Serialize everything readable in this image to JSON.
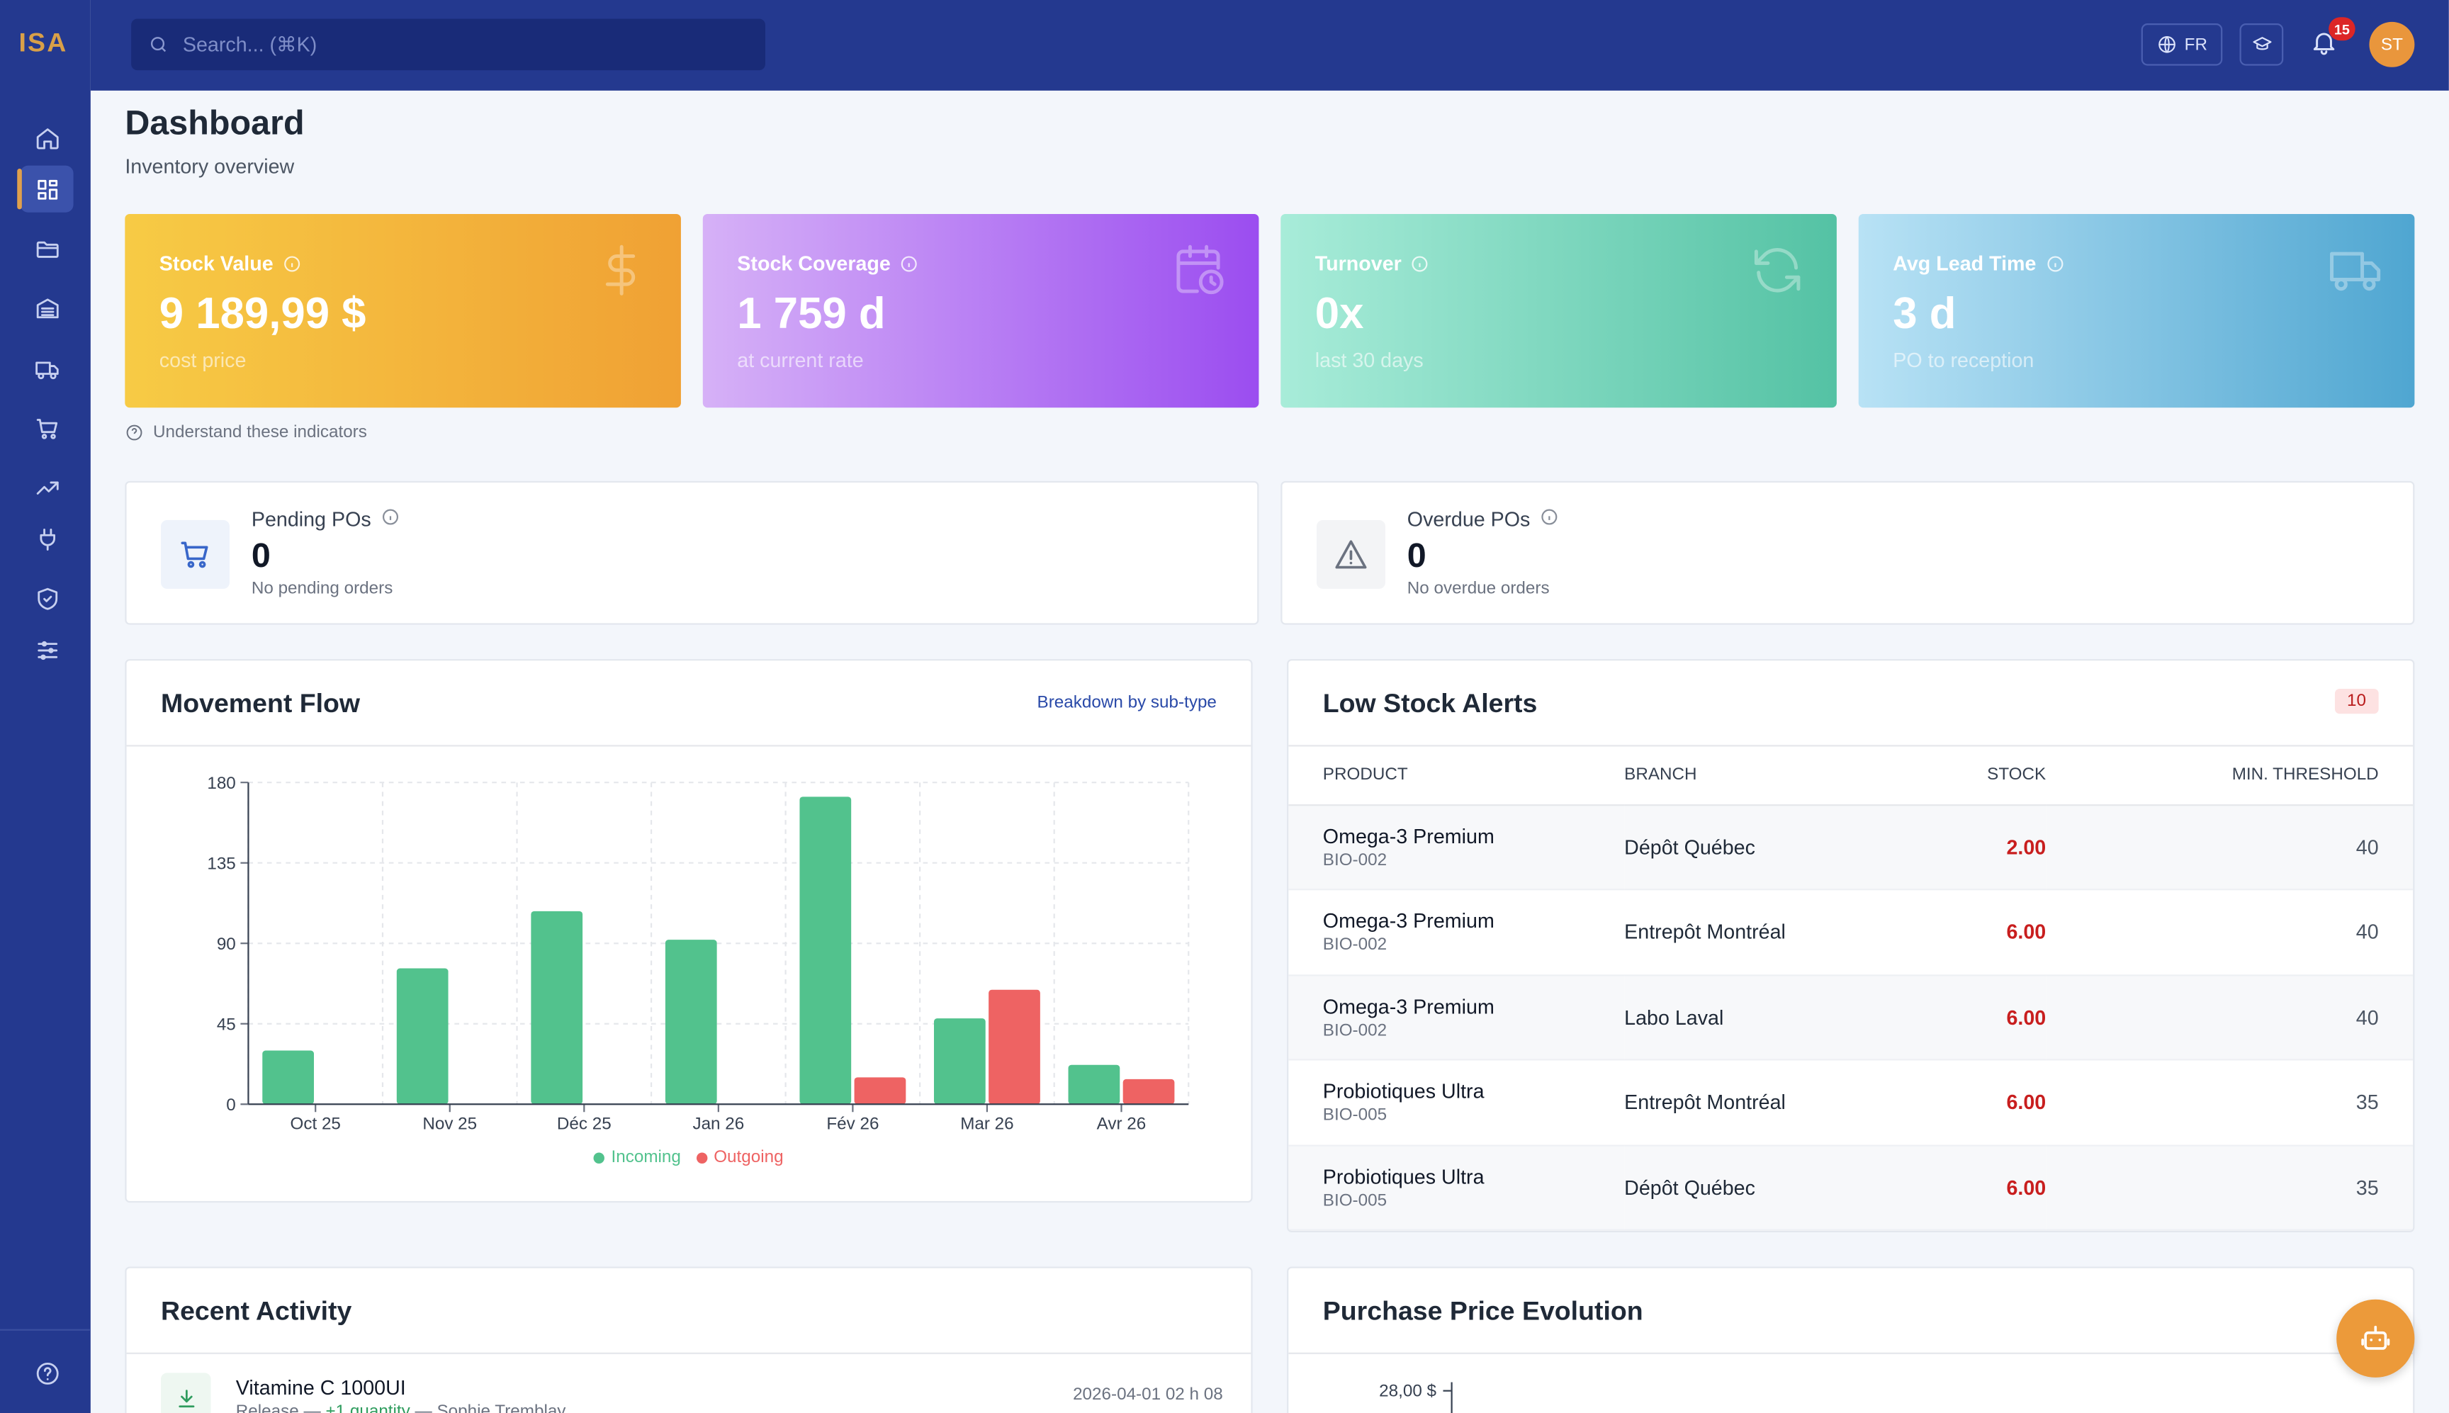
{
  "app": {
    "logo": "ISA"
  },
  "search": {
    "placeholder": "Search... (⌘K)"
  },
  "topbar": {
    "language": "FR",
    "notifications": "15",
    "avatar": "ST"
  },
  "page": {
    "title": "Dashboard",
    "subtitle": "Inventory overview"
  },
  "kpis": [
    {
      "label": "Stock Value",
      "value": "9 189,99 $",
      "sub": "cost price",
      "icon": "dollar-icon"
    },
    {
      "label": "Stock Coverage",
      "value": "1 759 d",
      "sub": "at current rate",
      "icon": "calendar-clock-icon"
    },
    {
      "label": "Turnover",
      "value": "0x",
      "sub": "last 30 days",
      "icon": "refresh-icon"
    },
    {
      "label": "Avg Lead Time",
      "value": "3 d",
      "sub": "PO to reception",
      "icon": "truck-icon"
    }
  ],
  "understand_link": "Understand these indicators",
  "pending": {
    "label": "Pending POs",
    "value": "0",
    "sub": "No pending orders"
  },
  "overdue": {
    "label": "Overdue POs",
    "value": "0",
    "sub": "No overdue orders"
  },
  "movement": {
    "title": "Movement Flow",
    "link": "Breakdown by sub-type"
  },
  "chart_data": {
    "type": "bar",
    "categories": [
      "Oct 25",
      "Nov 25",
      "Déc 25",
      "Jan 26",
      "Fév 26",
      "Mar 26",
      "Avr 26"
    ],
    "series": [
      {
        "name": "Incoming",
        "values": [
          30,
          76,
          108,
          92,
          172,
          48,
          22
        ],
        "color": "#52c28d"
      },
      {
        "name": "Outgoing",
        "values": [
          0,
          0,
          0,
          0,
          15,
          64,
          14
        ],
        "color": "#ee6363"
      }
    ],
    "yticks": [
      "0",
      "45",
      "90",
      "135",
      "180"
    ],
    "ylim": [
      0,
      180
    ],
    "grid": true,
    "legend": "bottom"
  },
  "alerts": {
    "title": "Low Stock Alerts",
    "count": "10",
    "columns": [
      "PRODUCT",
      "BRANCH",
      "STOCK",
      "MIN. THRESHOLD"
    ],
    "rows": [
      {
        "product": "Omega-3 Premium",
        "code": "BIO-002",
        "branch": "Dépôt Québec",
        "stock": "2.00",
        "threshold": "40"
      },
      {
        "product": "Omega-3 Premium",
        "code": "BIO-002",
        "branch": "Entrepôt Montréal",
        "stock": "6.00",
        "threshold": "40"
      },
      {
        "product": "Omega-3 Premium",
        "code": "BIO-002",
        "branch": "Labo Laval",
        "stock": "6.00",
        "threshold": "40"
      },
      {
        "product": "Probiotiques Ultra",
        "code": "BIO-005",
        "branch": "Entrepôt Montréal",
        "stock": "6.00",
        "threshold": "35"
      },
      {
        "product": "Probiotiques Ultra",
        "code": "BIO-005",
        "branch": "Dépôt Québec",
        "stock": "6.00",
        "threshold": "35"
      }
    ]
  },
  "activity": {
    "title": "Recent Activity",
    "item": {
      "name": "Vitamine C 1000UI",
      "type": "Release — ",
      "qty": "+1 quantity",
      "user": " — Sophie Tremblay",
      "time": "2026-04-01 02 h 08"
    }
  },
  "price": {
    "title": "Purchase Price Evolution",
    "ytick": "28,00 $"
  }
}
